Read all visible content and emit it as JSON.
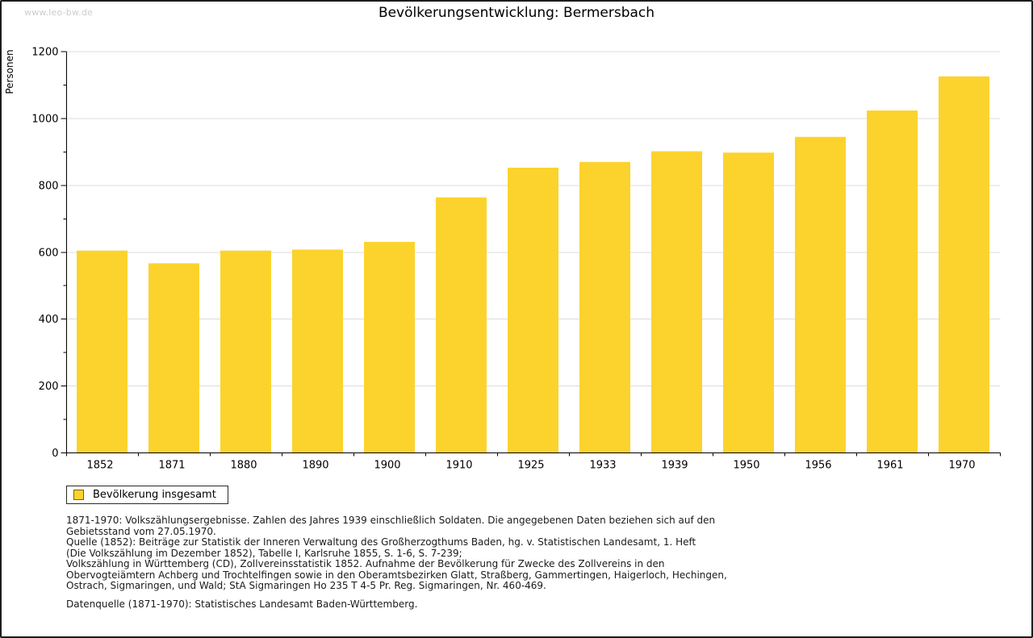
{
  "page": {
    "watermark": "www.leo-bw.de",
    "title": "Bevölkerungsentwicklung: Bermersbach"
  },
  "chart_data": {
    "type": "bar",
    "title": "Bevölkerungsentwicklung: Bermersbach",
    "xlabel": "",
    "ylabel": "Personen",
    "categories": [
      "1852",
      "1871",
      "1880",
      "1890",
      "1900",
      "1910",
      "1925",
      "1933",
      "1939",
      "1950",
      "1956",
      "1961",
      "1970"
    ],
    "values": [
      605,
      567,
      605,
      608,
      631,
      764,
      853,
      870,
      902,
      898,
      945,
      1024,
      1126
    ],
    "ylim": [
      0,
      1200
    ],
    "ytick_major_step": 200,
    "ytick_minor_step": 100,
    "ytick_labels": [
      "0",
      "200",
      "400",
      "600",
      "800",
      "1000",
      "1200"
    ],
    "grid": true,
    "legend_position": "bottom-left",
    "colors": {
      "bar": "#FCD32D",
      "grid": "#DCDCDC",
      "axis": "#000000",
      "tick_label": "#000000",
      "legend_swatch_border": "#7A6200"
    },
    "legend": [
      {
        "label": "Bevölkerung insgesamt",
        "color": "#FCD32D"
      }
    ]
  },
  "footnotes": {
    "lines": [
      "1871-1970: Volkszählungsergebnisse. Zahlen des Jahres 1939 einschließlich Soldaten. Die angegebenen Daten beziehen sich auf den",
      "Gebietsstand vom 27.05.1970.",
      "Quelle (1852): Beiträge zur Statistik der Inneren Verwaltung des Großherzogthums Baden, hg. v. Statistischen Landesamt, 1. Heft",
      "(Die Volkszählung im Dezember 1852), Tabelle I, Karlsruhe 1855, S. 1-6, S. 7-239;",
      "Volkszählung in Württemberg (CD), Zollvereinsstatistik 1852. Aufnahme der Bevölkerung für Zwecke des Zollvereins in den",
      "Obervogteiämtern Achberg und Trochtelfingen sowie in den Oberamtsbezirken Glatt, Straßberg, Gammertingen, Haigerloch, Hechingen,",
      "Ostrach, Sigmaringen, und Wald; StA Sigmaringen Ho 235 T 4-5 Pr. Reg. Sigmaringen, Nr. 460-469."
    ],
    "datasource": "Datenquelle (1871-1970): Statistisches Landesamt Baden-Württemberg."
  }
}
